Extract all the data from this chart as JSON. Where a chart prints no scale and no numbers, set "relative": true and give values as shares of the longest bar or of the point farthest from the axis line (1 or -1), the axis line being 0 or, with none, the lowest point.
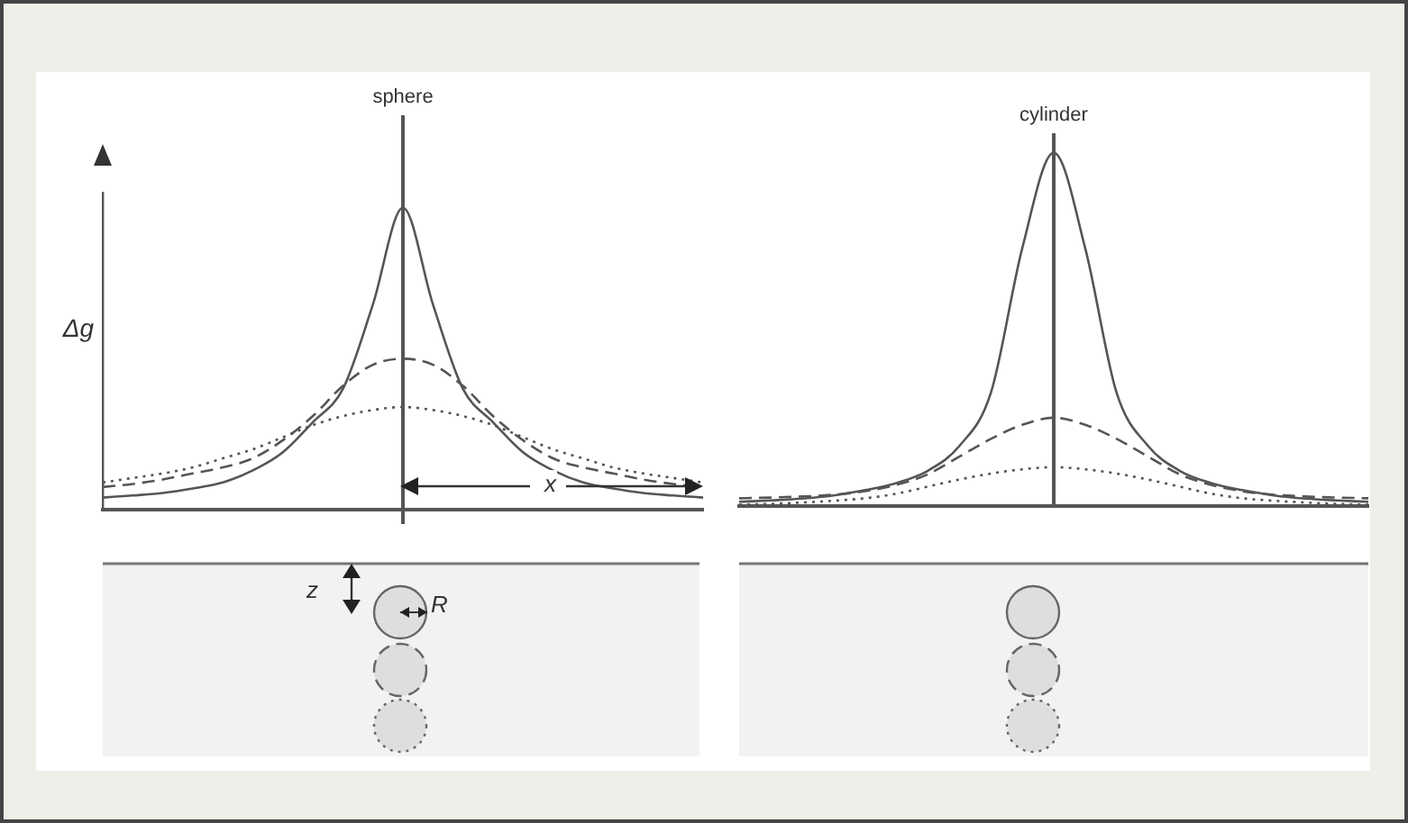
{
  "chart_data": [
    {
      "type": "line",
      "title": "sphere",
      "ylabel": "Δg",
      "relative": true,
      "marker": "none",
      "categories": [
        null,
        null,
        null,
        null,
        null,
        null,
        null,
        null,
        null,
        null,
        null,
        null,
        null,
        null,
        null,
        null,
        null,
        null,
        null,
        null,
        null
      ],
      "series": [
        {
          "color": "#555555",
          "line_style": "solid",
          "values": [
            0.04,
            0.047,
            0.055,
            0.07,
            0.09,
            0.13,
            0.19,
            0.29,
            0.4,
            0.68,
            1,
            0.68,
            0.4,
            0.29,
            0.19,
            0.13,
            0.09,
            0.07,
            0.055,
            0.047,
            0.04
          ]
        },
        {
          "color": "#555555",
          "line_style": "dashed",
          "values": [
            0.075,
            0.085,
            0.1,
            0.12,
            0.14,
            0.17,
            0.23,
            0.31,
            0.41,
            0.48,
            0.5,
            0.48,
            0.41,
            0.31,
            0.23,
            0.17,
            0.14,
            0.12,
            0.1,
            0.085,
            0.075
          ]
        },
        {
          "color": "#555555",
          "line_style": "dotted",
          "values": [
            0.09,
            0.105,
            0.12,
            0.14,
            0.17,
            0.2,
            0.24,
            0.28,
            0.31,
            0.33,
            0.34,
            0.33,
            0.31,
            0.28,
            0.24,
            0.2,
            0.17,
            0.14,
            0.12,
            0.105,
            0.09
          ]
        }
      ],
      "annotations": [
        "x",
        "z",
        "R"
      ]
    },
    {
      "type": "line",
      "title": "cylinder",
      "relative": true,
      "marker": "none",
      "categories": [
        null,
        null,
        null,
        null,
        null,
        null,
        null,
        null,
        null,
        null,
        null,
        null,
        null,
        null,
        null,
        null,
        null,
        null,
        null,
        null,
        null
      ],
      "series": [
        {
          "color": "#555555",
          "line_style": "solid",
          "values": [
            0.012,
            0.016,
            0.021,
            0.03,
            0.045,
            0.065,
            0.1,
            0.17,
            0.32,
            0.73,
            1,
            0.73,
            0.32,
            0.17,
            0.1,
            0.065,
            0.045,
            0.03,
            0.021,
            0.016,
            0.012
          ]
        },
        {
          "color": "#555555",
          "line_style": "dashed",
          "values": [
            0.022,
            0.024,
            0.027,
            0.032,
            0.042,
            0.06,
            0.09,
            0.14,
            0.19,
            0.23,
            0.25,
            0.23,
            0.19,
            0.14,
            0.09,
            0.06,
            0.042,
            0.032,
            0.027,
            0.024,
            0.022
          ]
        },
        {
          "color": "#555555",
          "line_style": "dotted",
          "values": [
            0.004,
            0.006,
            0.01,
            0.015,
            0.022,
            0.035,
            0.055,
            0.075,
            0.092,
            0.104,
            0.11,
            0.104,
            0.092,
            0.075,
            0.055,
            0.035,
            0.022,
            0.015,
            0.01,
            0.006,
            0.004
          ]
        }
      ]
    }
  ]
}
